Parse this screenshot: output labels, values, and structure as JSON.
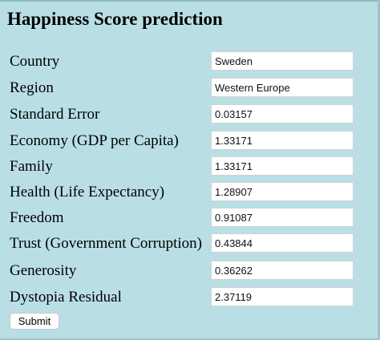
{
  "page": {
    "title": "Happiness Score prediction"
  },
  "form": {
    "fields": [
      {
        "label": "Country",
        "value": "Sweden"
      },
      {
        "label": "Region",
        "value": "Western Europe"
      },
      {
        "label": "Standard Error",
        "value": "0.03157"
      },
      {
        "label": "Economy (GDP per Capita)",
        "value": "1.33171"
      },
      {
        "label": "Family",
        "value": "1.33171"
      },
      {
        "label": "Health (Life Expectancy)",
        "value": "1.28907"
      },
      {
        "label": "Freedom",
        "value": "0.91087"
      },
      {
        "label": "Trust (Government Corruption)",
        "value": "0.43844"
      },
      {
        "label": "Generosity",
        "value": "0.36262"
      },
      {
        "label": "Dystopia Residual",
        "value": "2.37119"
      }
    ],
    "submit_label": "Submit"
  },
  "colors": {
    "background": "#b9dfe5",
    "input_background": "#ffffff"
  }
}
